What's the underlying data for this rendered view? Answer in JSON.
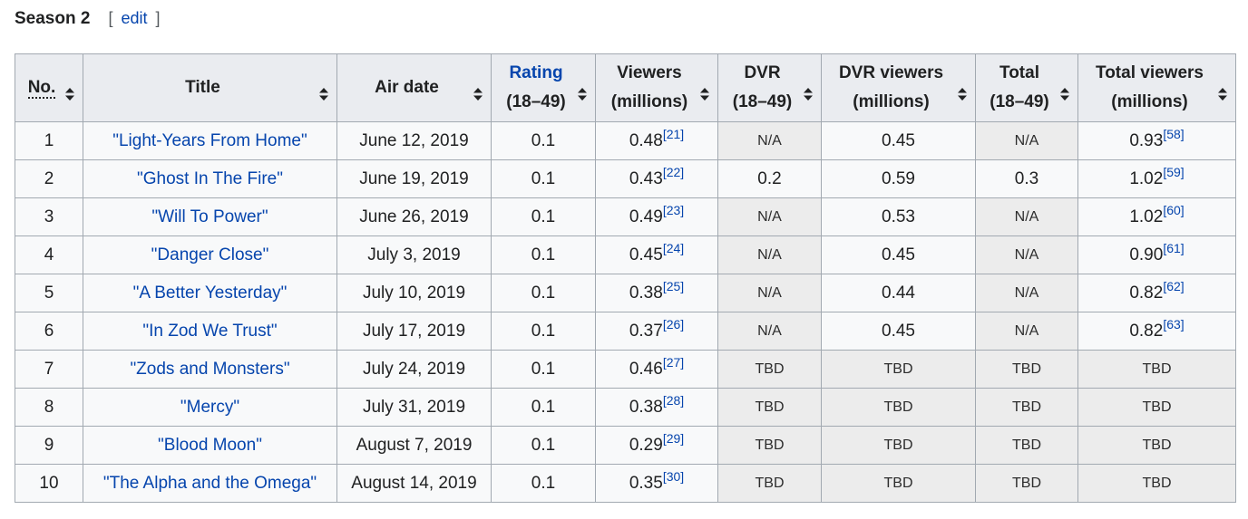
{
  "section": {
    "title": "Season 2",
    "edit_label": "edit",
    "bracket_open": "[",
    "bracket_close": "]"
  },
  "columns": [
    {
      "line1": "No.",
      "line2": ""
    },
    {
      "line1": "Title",
      "line2": ""
    },
    {
      "line1": "Air date",
      "line2": ""
    },
    {
      "line1": "Rating",
      "line2": "(18–49)"
    },
    {
      "line1": "Viewers",
      "line2": "(millions)"
    },
    {
      "line1": "DVR",
      "line2": "(18–49)"
    },
    {
      "line1": "DVR viewers",
      "line2": "(millions)"
    },
    {
      "line1": "Total",
      "line2": "(18–49)"
    },
    {
      "line1": "Total viewers",
      "line2": "(millions)"
    }
  ],
  "sort_icon": "sort-updown-icon",
  "rows": [
    {
      "no": "1",
      "title": "\"Light-Years From Home\"",
      "air_date": "June 12, 2019",
      "rating": "0.1",
      "viewers": "0.48",
      "viewers_ref": "[21]",
      "dvr": "N/A",
      "dvr_viewers": "0.45",
      "total": "N/A",
      "total_viewers": "0.93",
      "total_viewers_ref": "[58]"
    },
    {
      "no": "2",
      "title": "\"Ghost In The Fire\"",
      "air_date": "June 19, 2019",
      "rating": "0.1",
      "viewers": "0.43",
      "viewers_ref": "[22]",
      "dvr": "0.2",
      "dvr_viewers": "0.59",
      "total": "0.3",
      "total_viewers": "1.02",
      "total_viewers_ref": "[59]"
    },
    {
      "no": "3",
      "title": "\"Will To Power\"",
      "air_date": "June 26, 2019",
      "rating": "0.1",
      "viewers": "0.49",
      "viewers_ref": "[23]",
      "dvr": "N/A",
      "dvr_viewers": "0.53",
      "total": "N/A",
      "total_viewers": "1.02",
      "total_viewers_ref": "[60]"
    },
    {
      "no": "4",
      "title": "\"Danger Close\"",
      "air_date": "July 3, 2019",
      "rating": "0.1",
      "viewers": "0.45",
      "viewers_ref": "[24]",
      "dvr": "N/A",
      "dvr_viewers": "0.45",
      "total": "N/A",
      "total_viewers": "0.90",
      "total_viewers_ref": "[61]"
    },
    {
      "no": "5",
      "title": "\"A Better Yesterday\"",
      "air_date": "July 10, 2019",
      "rating": "0.1",
      "viewers": "0.38",
      "viewers_ref": "[25]",
      "dvr": "N/A",
      "dvr_viewers": "0.44",
      "total": "N/A",
      "total_viewers": "0.82",
      "total_viewers_ref": "[62]"
    },
    {
      "no": "6",
      "title": "\"In Zod We Trust\"",
      "air_date": "July 17, 2019",
      "rating": "0.1",
      "viewers": "0.37",
      "viewers_ref": "[26]",
      "dvr": "N/A",
      "dvr_viewers": "0.45",
      "total": "N/A",
      "total_viewers": "0.82",
      "total_viewers_ref": "[63]"
    },
    {
      "no": "7",
      "title": "\"Zods and Monsters\"",
      "air_date": "July 24, 2019",
      "rating": "0.1",
      "viewers": "0.46",
      "viewers_ref": "[27]",
      "dvr": "TBD",
      "dvr_viewers": "TBD",
      "total": "TBD",
      "total_viewers": "TBD",
      "total_viewers_ref": ""
    },
    {
      "no": "8",
      "title": "\"Mercy\"",
      "air_date": "July 31, 2019",
      "rating": "0.1",
      "viewers": "0.38",
      "viewers_ref": "[28]",
      "dvr": "TBD",
      "dvr_viewers": "TBD",
      "total": "TBD",
      "total_viewers": "TBD",
      "total_viewers_ref": ""
    },
    {
      "no": "9",
      "title": "\"Blood Moon\"",
      "air_date": "August 7, 2019",
      "rating": "0.1",
      "viewers": "0.29",
      "viewers_ref": "[29]",
      "dvr": "TBD",
      "dvr_viewers": "TBD",
      "total": "TBD",
      "total_viewers": "TBD",
      "total_viewers_ref": ""
    },
    {
      "no": "10",
      "title": "\"The Alpha and the Omega\"",
      "air_date": "August 14, 2019",
      "rating": "0.1",
      "viewers": "0.35",
      "viewers_ref": "[30]",
      "dvr": "TBD",
      "dvr_viewers": "TBD",
      "total": "TBD",
      "total_viewers": "TBD",
      "total_viewers_ref": ""
    }
  ]
}
